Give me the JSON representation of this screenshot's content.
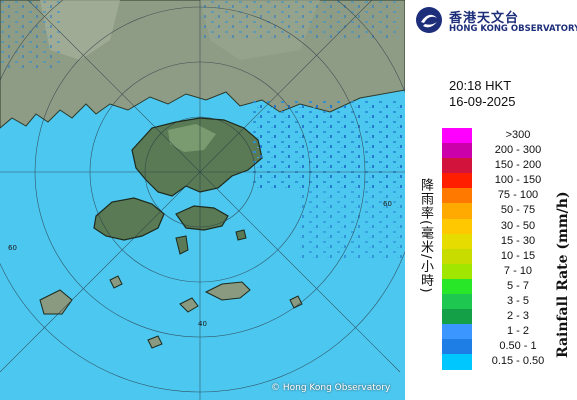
{
  "map": {
    "copyright": "© Hong Kong Observatory",
    "range_rings": [
      {
        "range_km": 20,
        "label": ""
      },
      {
        "range_km": 40,
        "label": "40"
      },
      {
        "range_km": 60,
        "label": "60"
      },
      {
        "range_km": 80,
        "label": ""
      }
    ],
    "colors": {
      "sea": "#4cc7f0",
      "land": "#8a9a80",
      "rain": "#3aa7e6"
    }
  },
  "logo": {
    "chinese": "香港天文台",
    "english": "HONG KONG OBSERVATORY",
    "icon": "observatory-emblem-icon",
    "color": "#1d2e7a"
  },
  "timestamp": {
    "time": "20:18 HKT",
    "date": "16-09-2025"
  },
  "legend": {
    "title_en": "Rainfall Rate (mm/h)",
    "title_cn": "降雨率(毫米/小時)",
    "items": [
      {
        "label": ">300",
        "color": "#ff00ff"
      },
      {
        "label": "200 - 300",
        "color": "#cc00aa"
      },
      {
        "label": "150 - 200",
        "color": "#d2143c"
      },
      {
        "label": "100 - 150",
        "color": "#ff1e00"
      },
      {
        "label": "75 - 100",
        "color": "#ff7800"
      },
      {
        "label": "50 - 75",
        "color": "#ffaa00"
      },
      {
        "label": "30 - 50",
        "color": "#ffc800"
      },
      {
        "label": "15 - 30",
        "color": "#e6dc00"
      },
      {
        "label": "10 - 15",
        "color": "#c8dc00"
      },
      {
        "label": "7 - 10",
        "color": "#a0e600"
      },
      {
        "label": "5 - 7",
        "color": "#28e628"
      },
      {
        "label": "3 - 5",
        "color": "#1ec850"
      },
      {
        "label": "2 - 3",
        "color": "#14a046"
      },
      {
        "label": "1 - 2",
        "color": "#3c96ff"
      },
      {
        "label": "0.50 - 1",
        "color": "#1e7ee6"
      },
      {
        "label": "0.15 - 0.50",
        "color": "#00c8ff"
      }
    ]
  }
}
